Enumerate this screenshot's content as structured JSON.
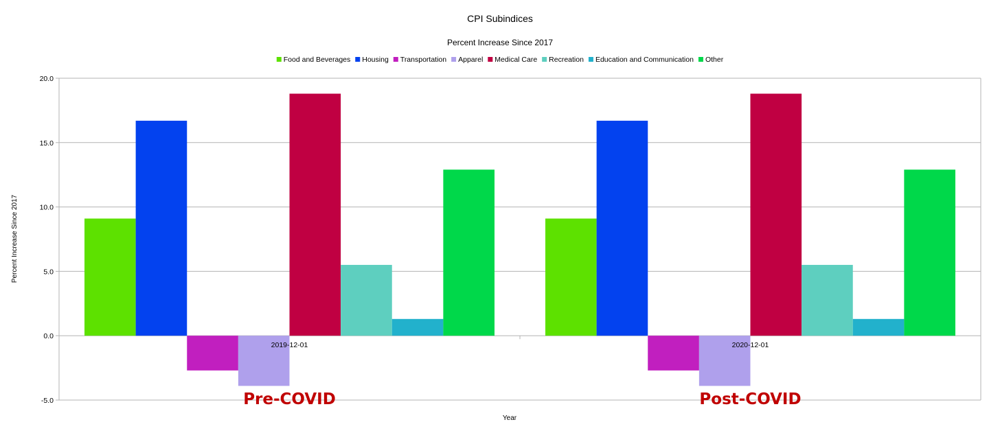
{
  "chart_data": {
    "type": "bar",
    "title": "CPI Subindices",
    "subtitle": "Percent Increase Since 2017",
    "xlabel": "Year",
    "ylabel": "Percent Increase Since 2017",
    "ylim": [
      -5,
      20
    ],
    "yticks": [
      "20.0",
      "15.0",
      "10.0",
      "5.0",
      "0.0",
      "-5.0"
    ],
    "grid": true,
    "legend_position": "top",
    "categories": [
      "2019-12-01",
      "2020-12-01"
    ],
    "series": [
      {
        "name": "Food and Beverages",
        "color": "#5de100",
        "values": [
          9.1,
          9.1
        ]
      },
      {
        "name": "Housing",
        "color": "#0342ef",
        "values": [
          16.7,
          16.7
        ]
      },
      {
        "name": "Transportation",
        "color": "#c11fbf",
        "values": [
          -2.7,
          -2.7
        ]
      },
      {
        "name": "Apparel",
        "color": "#afa0ec",
        "values": [
          -3.9,
          -3.9
        ]
      },
      {
        "name": "Medical Care",
        "color": "#c00042",
        "values": [
          18.8,
          18.8
        ]
      },
      {
        "name": "Recreation",
        "color": "#5ecfbf",
        "values": [
          5.5,
          5.5
        ]
      },
      {
        "name": "Education and Communication",
        "color": "#22b1cc",
        "values": [
          1.3,
          1.3
        ]
      },
      {
        "name": "Other",
        "color": "#00d84a",
        "values": [
          12.9,
          12.9
        ]
      }
    ],
    "annotations": [
      "Pre-COVID",
      "Post-COVID"
    ]
  }
}
